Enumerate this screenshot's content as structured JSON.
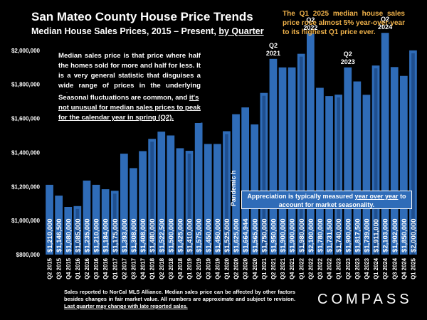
{
  "header": {
    "title": "San Mateo County House Price Trends",
    "subtitle_prefix": "Median House Sales Prices, 2015 – Present, ",
    "subtitle_link": "by Quarter"
  },
  "callout": "The Q1 2025 median house sales price rose almost 5% year-over-year to its highest Q1 price ever.",
  "notes": {
    "note1": "Median sales price is that price where half the homes sold for more and half for less. It is a very general statistic that disguises a wide range of prices in the underlying sales.",
    "note2_prefix": "Seasonal fluctuations are common, and ",
    "note2_underline": "it's not unusual for median sales prices to peak for the calendar year in spring (Q2).",
    "appreciation_prefix": "Appreciation is typically measured ",
    "appreciation_underline": "year over year",
    "appreciation_suffix": " to account for market seasonality.",
    "pandemic": "Pandemic hits"
  },
  "footer": {
    "text_prefix": "Sales reported to NorCal MLS Alliance. Median sales price can be affected by other factors besides changes in fair market value. All numbers are approximate and subject to revision. ",
    "text_underline": "Last quarter may change with late reported sales."
  },
  "logo": "COMPASS",
  "colors": {
    "bar": "#2f6cb8",
    "bar_inner": "#1f4f8f",
    "accent": "#f0b24a",
    "background": "#000000"
  },
  "chart_data": {
    "type": "bar",
    "title": "San Mateo County House Price Trends",
    "ylim": [
      800000,
      2200000
    ],
    "yticks": [
      800000,
      1000000,
      1200000,
      1400000,
      1600000,
      1800000,
      2000000
    ],
    "ytick_labels": [
      "$800,000",
      "$1,000,000",
      "$1,200,000",
      "$1,400,000",
      "$1,600,000",
      "$1,800,000",
      "$2,000,000"
    ],
    "grid": false,
    "categories": [
      "Q2 2015",
      "Q3 2015",
      "Q4 2015",
      "Q1 2016",
      "Q2 2016",
      "Q3 2016",
      "Q4 2016",
      "Q1 2017",
      "Q2 2017",
      "Q3 2017",
      "Q4 2017",
      "Q1 2018",
      "Q2 2018",
      "Q3 2018",
      "Q4 2018",
      "Q1 2019",
      "Q2 2019",
      "Q3 2019",
      "Q4 2019",
      "Q1 2020",
      "Q2 2020",
      "Q3 2020",
      "Q4 2020",
      "Q1 2021",
      "Q2 2021",
      "Q3 2021",
      "Q4 2021",
      "Q1 2022",
      "Q2 2022",
      "Q3 2022",
      "Q4 2022",
      "Q1 2023",
      "Q2 2023",
      "Q3 2023",
      "Q4 2023",
      "Q1 2024",
      "Q2 2024",
      "Q3 2024",
      "Q4 2024",
      "Q1 2025"
    ],
    "values": [
      1210000,
      1146500,
      1080000,
      1085000,
      1235000,
      1210000,
      1184000,
      1175000,
      1393000,
      1308000,
      1408000,
      1480000,
      1522500,
      1500000,
      1425000,
      1410000,
      1575000,
      1450000,
      1450000,
      1525000,
      1625000,
      1664944,
      1565000,
      1750000,
      1950000,
      1900000,
      1900000,
      1980000,
      2100000,
      1780000,
      1731500,
      1740000,
      1900000,
      1817500,
      1739000,
      1911000,
      2103000,
      1902000,
      1850000,
      2000000
    ],
    "value_labels": [
      "$1,210,000",
      "$1,146,500",
      "$1,080,000",
      "$1,085,000",
      "$1,235,000",
      "$1,210,000",
      "$1,184,000",
      "$1,175,000",
      "$1,393,000",
      "$1,308,000",
      "$1,408,000",
      "$1,480,000",
      "$1,522,500",
      "$1,500,000",
      "$1,425,000",
      "$1,410,000",
      "$1,575,000",
      "$1,450,000",
      "$1,450,000",
      "$1,525,000",
      "$1,625,000",
      "$1,664,944",
      "$1,565,000",
      "$1,750,000",
      "$1,950,000",
      "$1,900,000",
      "$1,900,000",
      "$1,980,000",
      "$2,100,000",
      "$1,780,000",
      "$1,731,500",
      "$1,740,000",
      "$1,900,000",
      "$1,817,500",
      "$1,739,000",
      "$1,911,000",
      "$2,103,000",
      "$1,902,000",
      "$1,850,000",
      "$2,000,000"
    ],
    "highlighted": [
      "Q1 2016",
      "Q1 2017",
      "Q1 2018",
      "Q1 2019",
      "Q1 2020",
      "Q1 2021",
      "Q1 2022",
      "Q1 2023",
      "Q1 2024",
      "Q1 2025"
    ],
    "annotations": [
      {
        "category": "Q2 2021",
        "line1": "Q2",
        "line2": "2021"
      },
      {
        "category": "Q2 2022",
        "line1": "Q2",
        "line2": "2022"
      },
      {
        "category": "Q2 2023",
        "line1": "Q2",
        "line2": "2023"
      },
      {
        "category": "Q2 2024",
        "line1": "Q2",
        "line2": "2024"
      }
    ]
  }
}
